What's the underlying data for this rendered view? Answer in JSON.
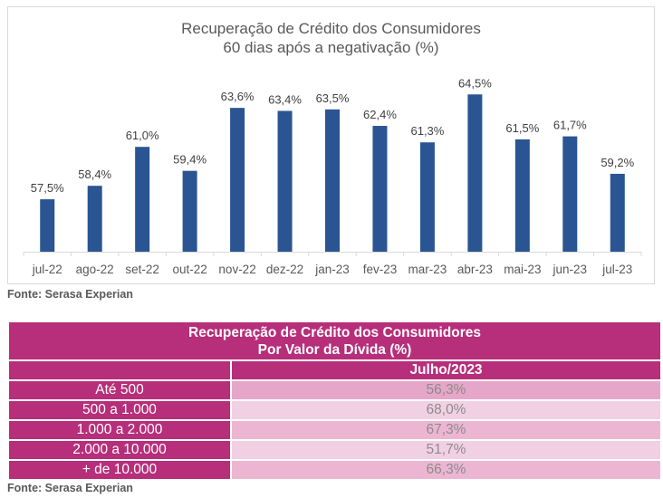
{
  "chart_data": {
    "type": "bar",
    "title": "Recuperação de Crédito dos Consumidores",
    "subtitle": "60 dias após a negativação (%)",
    "categories": [
      "jul-22",
      "ago-22",
      "set-22",
      "out-22",
      "nov-22",
      "dez-22",
      "jan-23",
      "fev-23",
      "mar-23",
      "abr-23",
      "mai-23",
      "jun-23",
      "jul-23"
    ],
    "values": [
      57.5,
      58.4,
      61.0,
      59.4,
      63.6,
      63.4,
      63.5,
      62.4,
      61.3,
      64.5,
      61.5,
      61.7,
      59.2
    ],
    "data_labels": [
      "57,5%",
      "58,4%",
      "61,0%",
      "59,4%",
      "63,6%",
      "63,4%",
      "63,5%",
      "62,4%",
      "61,3%",
      "64,5%",
      "61,5%",
      "61,7%",
      "59,2%"
    ],
    "xlabel": "",
    "ylabel": "",
    "ylim": [
      54,
      65
    ],
    "y_axis_visible": false,
    "grid": false,
    "bar_color": "#2a5592"
  },
  "chart_source": "Fonte: Serasa Experian",
  "table": {
    "title_line1": "Recuperação de Crédito dos Consumidores",
    "title_line2": "Por Valor da Dívida (%)",
    "column_header": "Julho/2023",
    "rows": [
      {
        "label": "Até 500",
        "value": "56,3%"
      },
      {
        "label": "500 a 1.000",
        "value": "68,0%"
      },
      {
        "label": "1.000 a 2.000",
        "value": "67,3%"
      },
      {
        "label": "2.000 a 10.000",
        "value": "51,7%"
      },
      {
        "label": "+ de 10.000",
        "value": "66,3%"
      }
    ],
    "header_color": "#b72e7a"
  },
  "table_source": "Fonte: Serasa Experian"
}
